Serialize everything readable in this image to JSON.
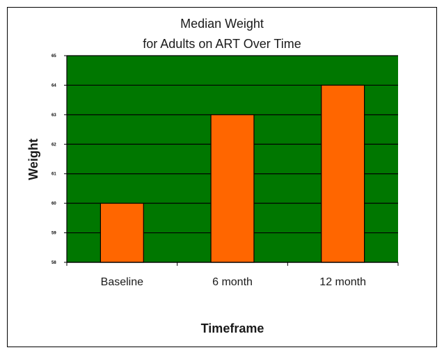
{
  "chart_data": {
    "type": "bar",
    "title_lines": [
      "Median Weight",
      "for Adults on ART Over Time"
    ],
    "categories": [
      "Baseline",
      "6 month",
      "12 month"
    ],
    "values": [
      60,
      63,
      64
    ],
    "xlabel": "Timeframe",
    "ylabel": "Weight",
    "ylim": [
      58,
      65
    ],
    "yticks": [
      "58",
      "59",
      "60",
      "61",
      "62",
      "63",
      "64",
      "65"
    ],
    "grid": true,
    "legend": "none",
    "colors": {
      "plot_background": "#007700",
      "bar_fill": "#ff6600",
      "grid": "#000000"
    }
  }
}
